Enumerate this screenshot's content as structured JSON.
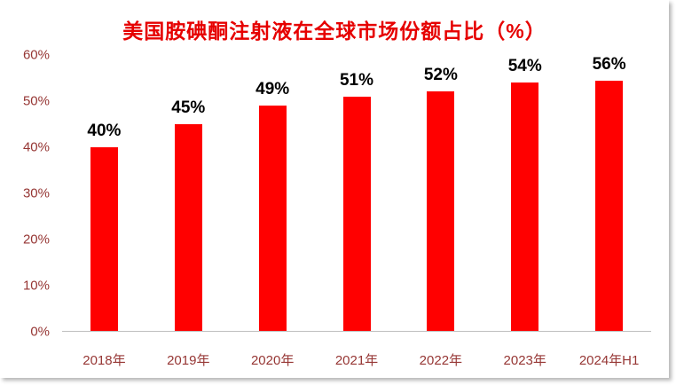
{
  "chart_data": {
    "type": "bar",
    "title": "美国胺碘酮注射液在全球市场份额占比（%）",
    "categories": [
      "2018年",
      "2019年",
      "2020年",
      "2021年",
      "2022年",
      "2023年",
      "2024年H1"
    ],
    "values": [
      40,
      45,
      49,
      51,
      52,
      54,
      56
    ],
    "value_labels": [
      "40%",
      "45%",
      "49%",
      "51%",
      "52%",
      "54%",
      "56%"
    ],
    "y_ticks": [
      "60%",
      "50%",
      "40%",
      "30%",
      "20%",
      "10%",
      "0%"
    ],
    "y_tick_values": [
      60,
      50,
      40,
      30,
      20,
      10,
      0
    ],
    "ylim": [
      0,
      60
    ],
    "xlabel": "",
    "ylabel": "",
    "grid": false,
    "legend_position": "none",
    "bar_color": "#ff0000",
    "title_color": "#e60000",
    "axis_label_color": "#963634",
    "value_label_color": "#000000",
    "axis_line_color": "#bfbfbf",
    "background_color": "#ffffff"
  }
}
